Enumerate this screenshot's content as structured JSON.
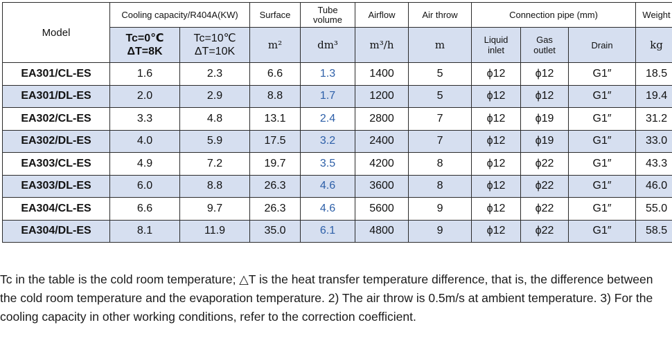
{
  "table": {
    "headers": {
      "model": "Model",
      "cooling_capacity": "Cooling capacity/R404A(KW)",
      "cond1_tc": "Tc=0℃",
      "cond1_dt": "ΔT=8K",
      "cond2_tc": "Tc=10℃",
      "cond2_dt": "ΔT=10K",
      "surface": "Surface",
      "surface_unit": "m²",
      "tube_volume_line1": "Tube",
      "tube_volume_line2": "volume",
      "tube_volume_unit": "dm³",
      "airflow": "Airflow",
      "airflow_unit": "m³/h",
      "air_throw": "Air throw",
      "air_throw_unit": "m",
      "connection_pipe": "Connection pipe (mm)",
      "liquid_line1": "Liquid",
      "liquid_line2": "inlet",
      "gas_line1": "Gas",
      "gas_line2": "outlet",
      "drain": "Drain",
      "weight": "Weight",
      "weight_unit": "kg"
    },
    "rows": [
      {
        "model": "EA301/CL-ES",
        "cap0": "1.6",
        "cap10": "2.3",
        "surface": "6.6",
        "tube": "1.3",
        "airflow": "1400",
        "throw": "5",
        "liquid": "ϕ12",
        "gas": "ϕ12",
        "drain": "G1″",
        "weight": "18.5"
      },
      {
        "model": "EA301/DL-ES",
        "cap0": "2.0",
        "cap10": "2.9",
        "surface": "8.8",
        "tube": "1.7",
        "airflow": "1200",
        "throw": "5",
        "liquid": "ϕ12",
        "gas": "ϕ12",
        "drain": "G1″",
        "weight": "19.4"
      },
      {
        "model": "EA302/CL-ES",
        "cap0": "3.3",
        "cap10": "4.8",
        "surface": "13.1",
        "tube": "2.4",
        "airflow": "2800",
        "throw": "7",
        "liquid": "ϕ12",
        "gas": "ϕ19",
        "drain": "G1″",
        "weight": "31.2"
      },
      {
        "model": "EA302/DL-ES",
        "cap0": "4.0",
        "cap10": "5.9",
        "surface": "17.5",
        "tube": "3.2",
        "airflow": "2400",
        "throw": "7",
        "liquid": "ϕ12",
        "gas": "ϕ19",
        "drain": "G1″",
        "weight": "33.0"
      },
      {
        "model": "EA303/CL-ES",
        "cap0": "4.9",
        "cap10": "7.2",
        "surface": "19.7",
        "tube": "3.5",
        "airflow": "4200",
        "throw": "8",
        "liquid": "ϕ12",
        "gas": "ϕ22",
        "drain": "G1″",
        "weight": "43.3"
      },
      {
        "model": "EA303/DL-ES",
        "cap0": "6.0",
        "cap10": "8.8",
        "surface": "26.3",
        "tube": "4.6",
        "airflow": "3600",
        "throw": "8",
        "liquid": "ϕ12",
        "gas": "ϕ22",
        "drain": "G1″",
        "weight": "46.0"
      },
      {
        "model": "EA304/CL-ES",
        "cap0": "6.6",
        "cap10": "9.7",
        "surface": "26.3",
        "tube": "4.6",
        "airflow": "5600",
        "throw": "9",
        "liquid": "ϕ12",
        "gas": "ϕ22",
        "drain": "G1″",
        "weight": "55.0"
      },
      {
        "model": "EA304/DL-ES",
        "cap0": "8.1",
        "cap10": "11.9",
        "surface": "35.0",
        "tube": "6.1",
        "airflow": "4800",
        "throw": "9",
        "liquid": "ϕ12",
        "gas": "ϕ22",
        "drain": "G1″",
        "weight": "58.5"
      }
    ]
  },
  "notes": "Tc in the table is the cold room temperature; △T is the heat transfer temperature difference, that is, the difference between the cold room temperature and the evaporation temperature. 2) The air throw is 0.5m/s at ambient temperature. 3) For the cooling capacity in other working conditions, refer to the correction coefficient."
}
